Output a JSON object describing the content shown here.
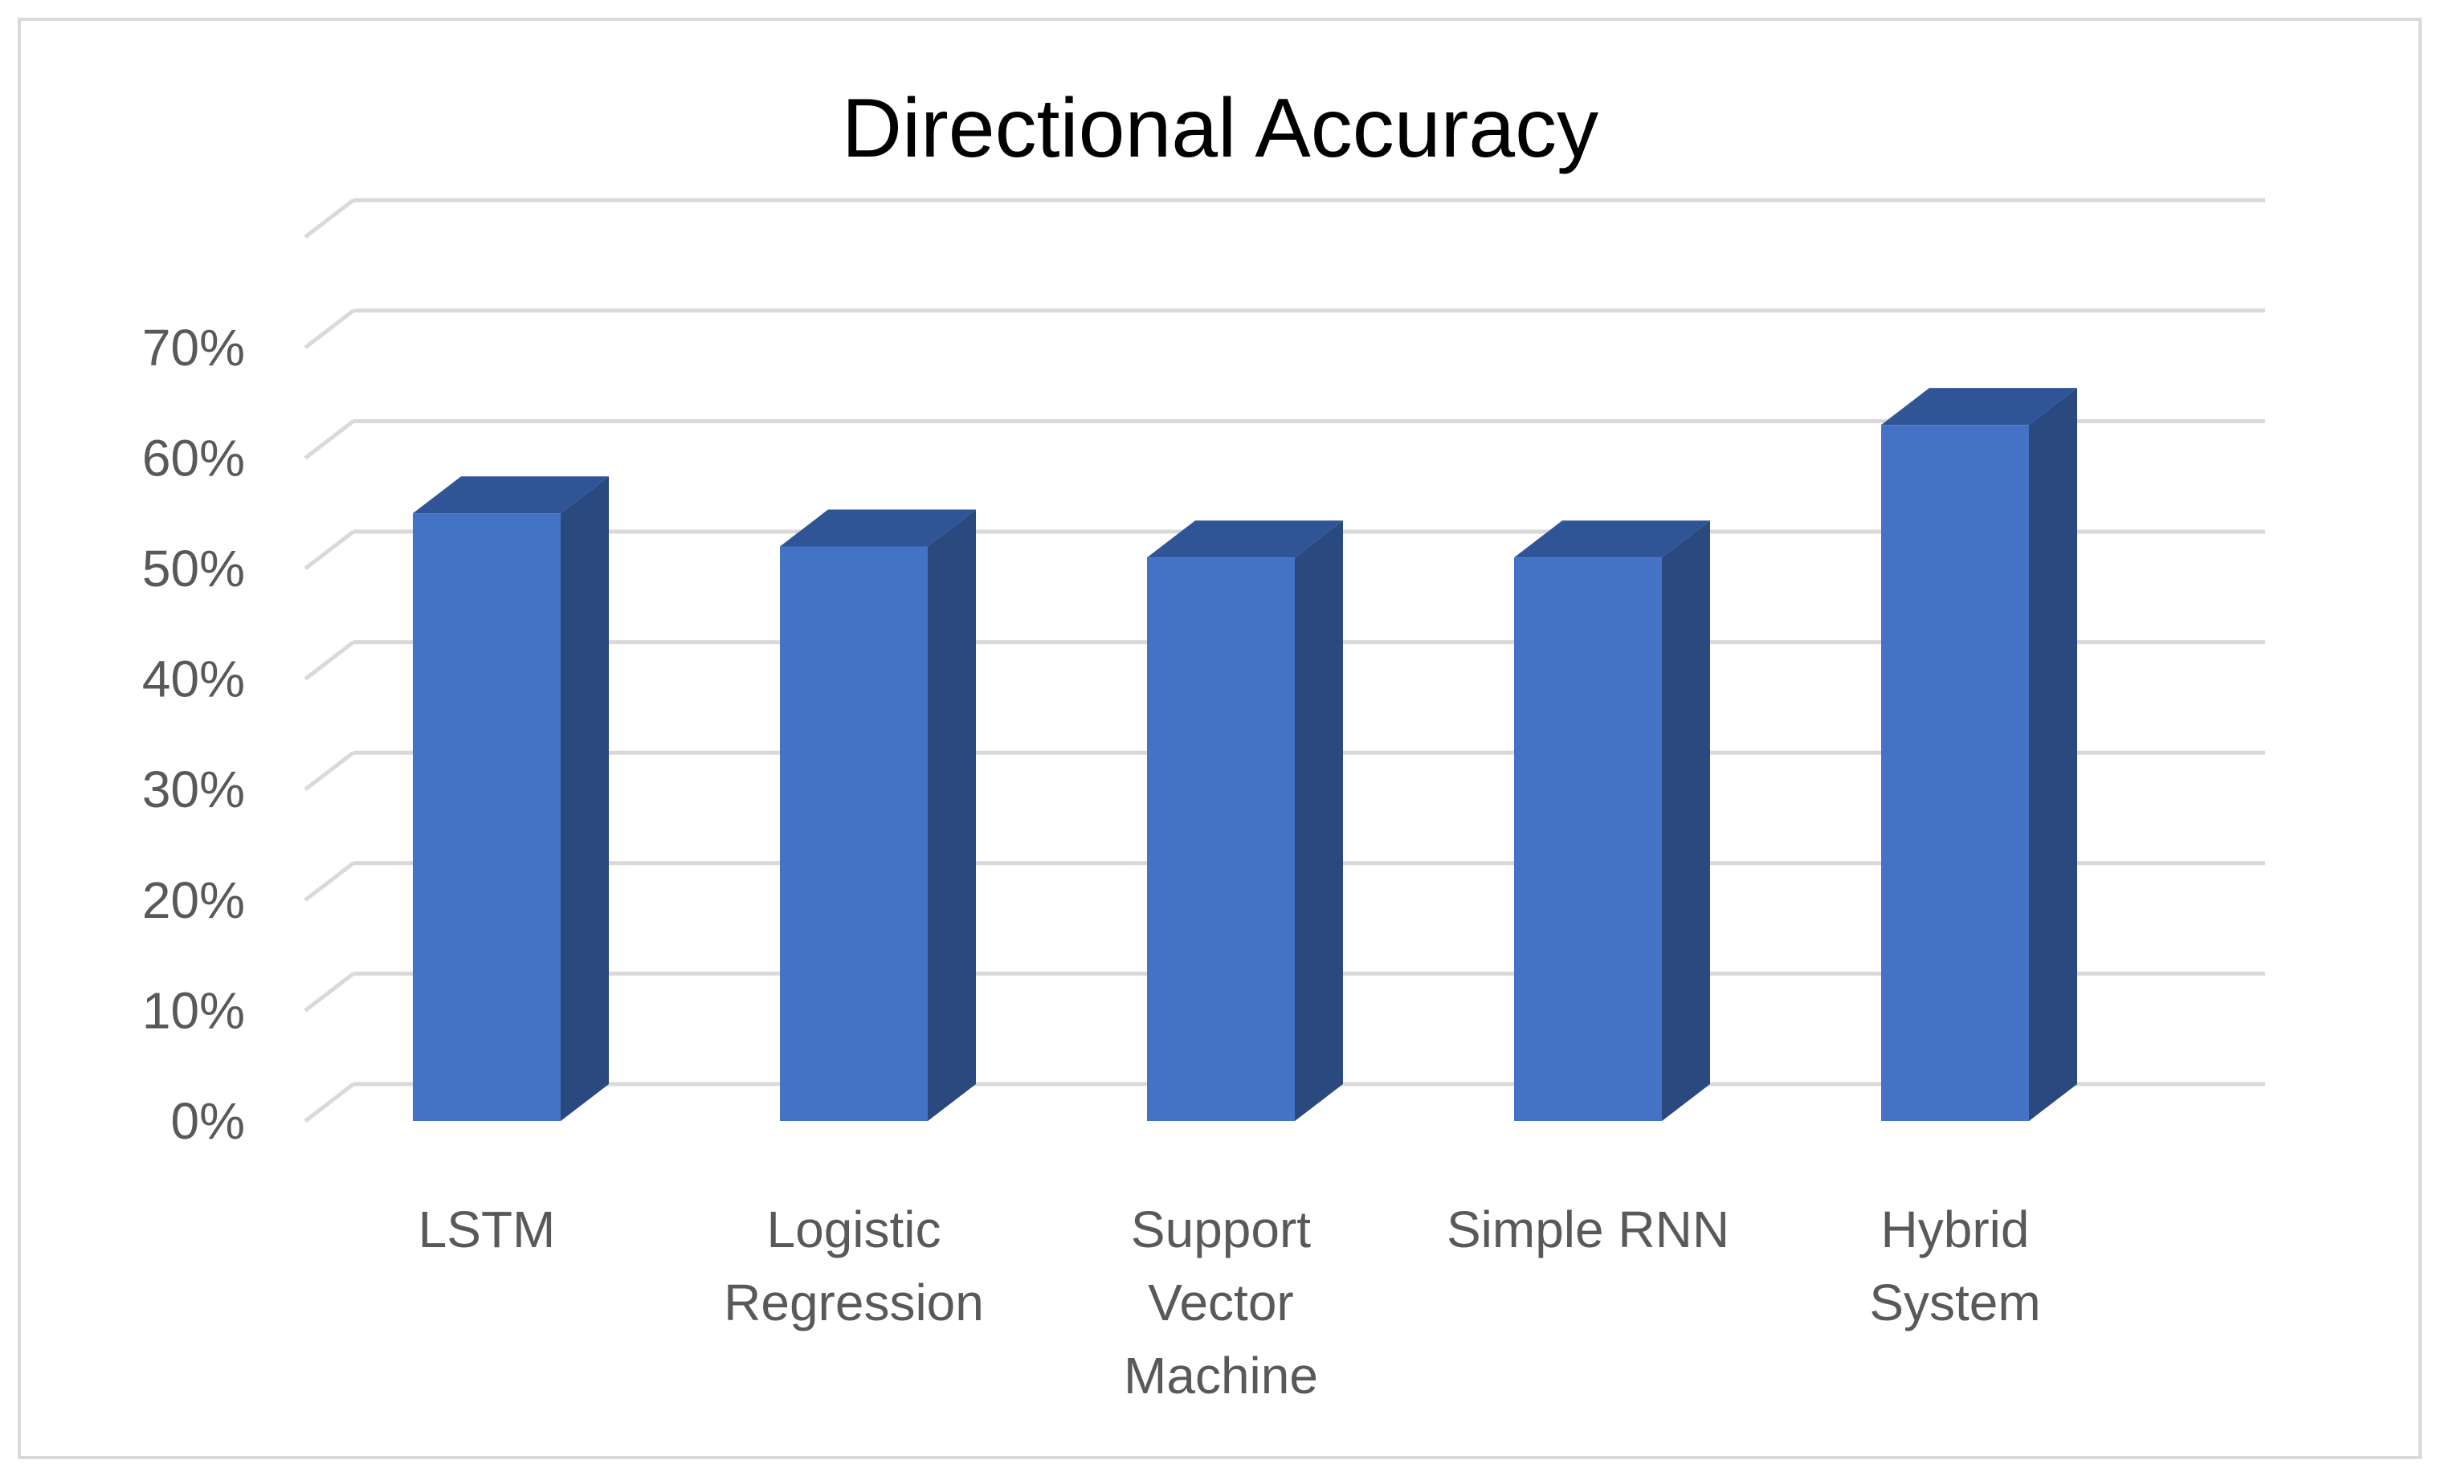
{
  "chart_data": {
    "type": "bar",
    "title": "Directional Accuracy",
    "xlabel": "",
    "ylabel": "",
    "categories": [
      "LSTM",
      "Logistic Regression",
      "Support Vector Machine",
      "Simple RNN",
      "Hybrid System"
    ],
    "category_lines": [
      [
        "LSTM"
      ],
      [
        "Logistic",
        "Regression"
      ],
      [
        "Support",
        "Vector",
        "Machine"
      ],
      [
        "Simple RNN"
      ],
      [
        "Hybrid",
        "System"
      ]
    ],
    "values": [
      0.55,
      0.52,
      0.51,
      0.51,
      0.63
    ],
    "y_ticks": [
      0,
      0.1,
      0.2,
      0.3,
      0.4,
      0.5,
      0.6,
      0.7
    ],
    "y_tick_labels": [
      "0%",
      "10%",
      "20%",
      "30%",
      "40%",
      "50%",
      "60%",
      "70%"
    ],
    "ylim": [
      0,
      0.8
    ],
    "grid": true,
    "legend": "none",
    "style": "3d-column",
    "colors": {
      "bar_front": "#4472C4",
      "bar_side": "#2A4A7F",
      "bar_top": "#2F5597",
      "grid": "#d9d9d9",
      "text": "#595959",
      "title": "#000000",
      "frame": "#d9d9d9"
    }
  }
}
